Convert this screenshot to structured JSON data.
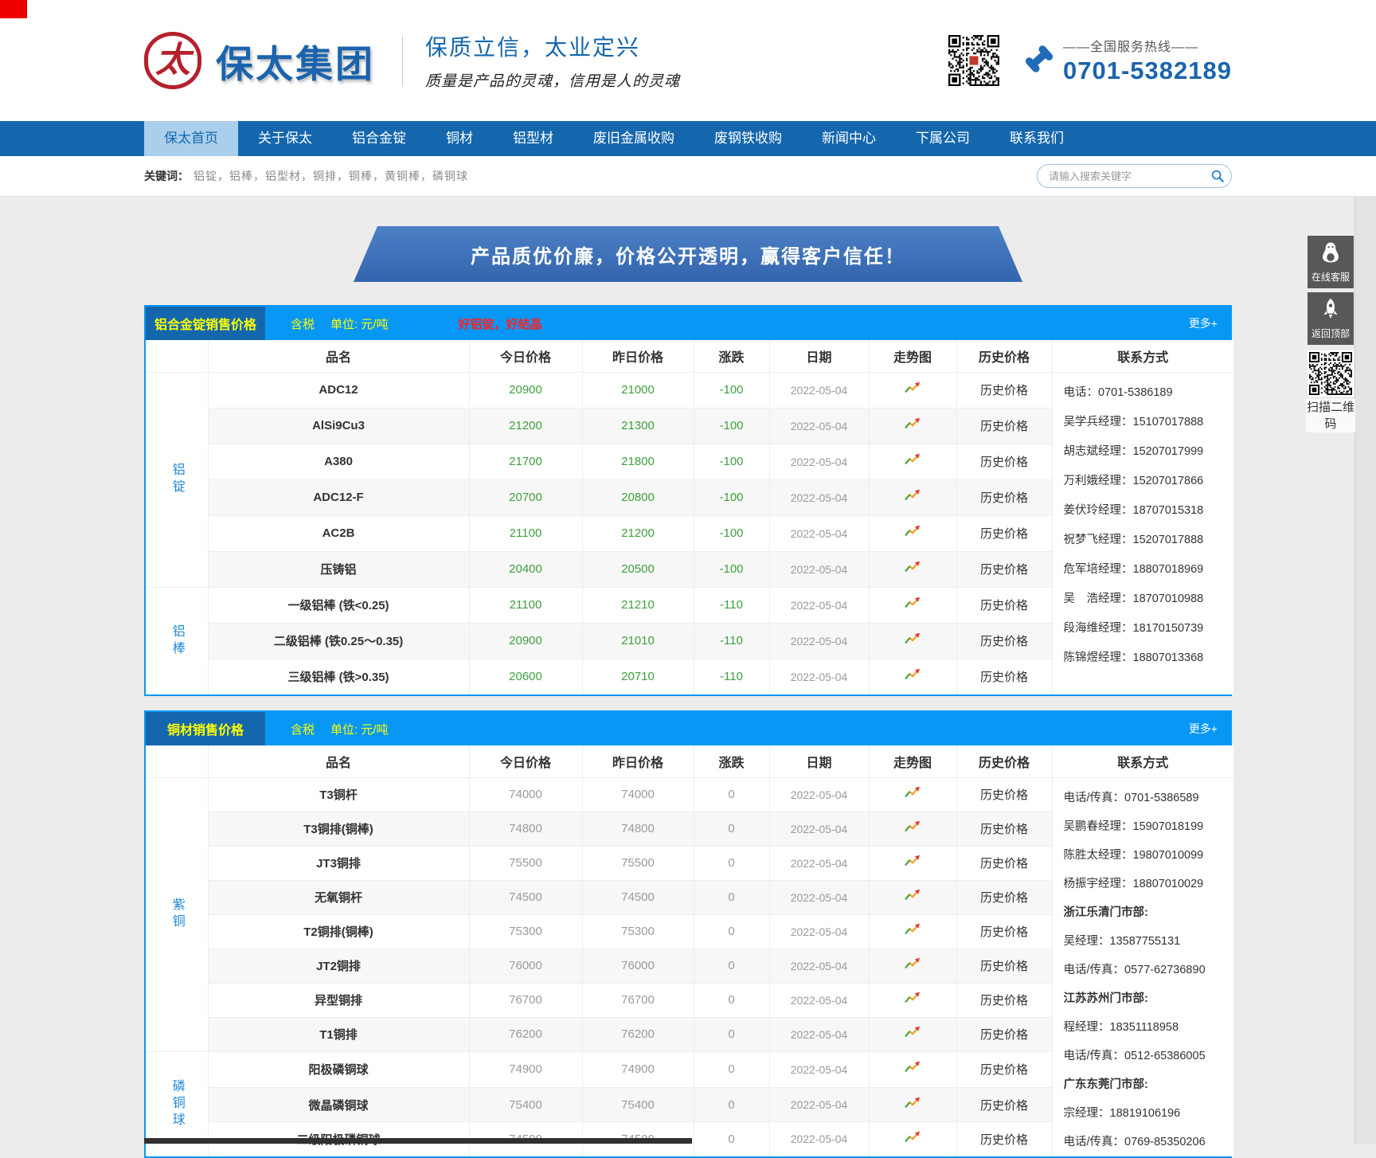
{
  "colors": {
    "accent_blue": "#0897f5",
    "nav_blue": "#1467ad",
    "highlight_yellow": "#ffff00",
    "down_green": "#3da03d",
    "neutral_gray": "#9a9a9a",
    "promo_red": "#ff2020",
    "logo_red": "#b5202a"
  },
  "header": {
    "logo_char": "太",
    "company_name": "保太集团",
    "slogan_main": "保质立信，太业定兴",
    "slogan_sub": "质量是产品的灵魂，信用是人的灵魂",
    "hotline_label": "——全国服务热线——",
    "hotline_number": "0701-5382189"
  },
  "nav": {
    "active_index": 0,
    "items": [
      "保太首页",
      "关于保太",
      "铝合金锭",
      "铜材",
      "铝型材",
      "废旧金属收购",
      "废钢铁收购",
      "新闻中心",
      "下属公司",
      "联系我们"
    ]
  },
  "search": {
    "keywords_label": "关键词：",
    "keywords_text": "铝锭，铝棒，铝型材，铜排，铜棒，黄铜棒，磷铜球",
    "placeholder": "请输入搜索关键字"
  },
  "banner": {
    "text": "产品质优价廉，价格公开透明，赢得客户信任！"
  },
  "table_columns": [
    "品名",
    "今日价格",
    "昨日价格",
    "涨跌",
    "日期",
    "走势图",
    "历史价格",
    "联系方式"
  ],
  "tables": [
    {
      "title": "铝合金锭销售价格",
      "tax_note": "含税",
      "unit_note": "单位: 元/吨",
      "promo_note": "好铝锭，好结晶",
      "more_label": "更多+",
      "history_label": "历史价格",
      "groups": [
        {
          "label": "铝锭",
          "rows": [
            {
              "name": "ADC12",
              "today": "20900",
              "yesterday": "21000",
              "change": "-100",
              "date": "2022-05-04"
            },
            {
              "name": "AlSi9Cu3",
              "today": "21200",
              "yesterday": "21300",
              "change": "-100",
              "date": "2022-05-04"
            },
            {
              "name": "A380",
              "today": "21700",
              "yesterday": "21800",
              "change": "-100",
              "date": "2022-05-04"
            },
            {
              "name": "ADC12-F",
              "today": "20700",
              "yesterday": "20800",
              "change": "-100",
              "date": "2022-05-04"
            },
            {
              "name": "AC2B",
              "today": "21100",
              "yesterday": "21200",
              "change": "-100",
              "date": "2022-05-04"
            },
            {
              "name": "压铸铝",
              "today": "20400",
              "yesterday": "20500",
              "change": "-100",
              "date": "2022-05-04"
            }
          ]
        },
        {
          "label": "铝棒",
          "rows": [
            {
              "name": "一级铝棒 (铁<0.25)",
              "today": "21100",
              "yesterday": "21210",
              "change": "-110",
              "date": "2022-05-04"
            },
            {
              "name": "二级铝棒 (铁0.25～0.35)",
              "today": "20900",
              "yesterday": "21010",
              "change": "-110",
              "date": "2022-05-04"
            },
            {
              "name": "三级铝棒 (铁>0.35)",
              "today": "20600",
              "yesterday": "20710",
              "change": "-110",
              "date": "2022-05-04"
            }
          ]
        }
      ],
      "contact_lines": [
        {
          "text": "电话：0701-5386189",
          "bold": false
        },
        {
          "text": "吴学兵经理：15107017888",
          "bold": false
        },
        {
          "text": "胡志斌经理：15207017999",
          "bold": false
        },
        {
          "text": "万利娥经理：15207017866",
          "bold": false
        },
        {
          "text": "姜伏玲经理：18707015318",
          "bold": false
        },
        {
          "text": "祝梦飞经理：15207017888",
          "bold": false
        },
        {
          "text": "危军培经理：18807018969",
          "bold": false
        },
        {
          "text": "吴　浩经理：18707010988",
          "bold": false
        },
        {
          "text": "段海维经理：18170150739",
          "bold": false
        },
        {
          "text": "陈锦煜经理：18807013368",
          "bold": false
        }
      ]
    },
    {
      "title": "铜材销售价格",
      "tax_note": "含税",
      "unit_note": "单位: 元/吨",
      "promo_note": "",
      "more_label": "更多+",
      "history_label": "历史价格",
      "groups": [
        {
          "label": "紫铜",
          "rows": [
            {
              "name": "T3铜杆",
              "today": "74000",
              "yesterday": "74000",
              "change": "0",
              "date": "2022-05-04"
            },
            {
              "name": "T3铜排(铜棒)",
              "today": "74800",
              "yesterday": "74800",
              "change": "0",
              "date": "2022-05-04"
            },
            {
              "name": "JT3铜排",
              "today": "75500",
              "yesterday": "75500",
              "change": "0",
              "date": "2022-05-04"
            },
            {
              "name": "无氧铜杆",
              "today": "74500",
              "yesterday": "74500",
              "change": "0",
              "date": "2022-05-04"
            },
            {
              "name": "T2铜排(铜棒)",
              "today": "75300",
              "yesterday": "75300",
              "change": "0",
              "date": "2022-05-04"
            },
            {
              "name": "JT2铜排",
              "today": "76000",
              "yesterday": "76000",
              "change": "0",
              "date": "2022-05-04"
            },
            {
              "name": "异型铜排",
              "today": "76700",
              "yesterday": "76700",
              "change": "0",
              "date": "2022-05-04"
            },
            {
              "name": "T1铜排",
              "today": "76200",
              "yesterday": "76200",
              "change": "0",
              "date": "2022-05-04"
            }
          ]
        },
        {
          "label": "磷铜球",
          "rows": [
            {
              "name": "阳极磷铜球",
              "today": "74900",
              "yesterday": "74900",
              "change": "0",
              "date": "2022-05-04"
            },
            {
              "name": "微晶磷铜球",
              "today": "75400",
              "yesterday": "75400",
              "change": "0",
              "date": "2022-05-04"
            },
            {
              "name": "二级阳极磷铜球",
              "today": "74500",
              "yesterday": "74500",
              "change": "0",
              "date": "2022-05-04"
            }
          ]
        }
      ],
      "contact_lines": [
        {
          "text": "电话/传真：0701-5386589",
          "bold": false
        },
        {
          "text": "吴鹏春经理：15907018199",
          "bold": false
        },
        {
          "text": "陈胜太经理：19807010099",
          "bold": false
        },
        {
          "text": "杨振宇经理：18807010029",
          "bold": false
        },
        {
          "text": "浙江乐清门市部:",
          "bold": true
        },
        {
          "text": "吴经理：13587755131",
          "bold": false
        },
        {
          "text": "电话/传真：0577-62736890",
          "bold": false
        },
        {
          "text": "江苏苏州门市部:",
          "bold": true
        },
        {
          "text": "程经理：18351118958",
          "bold": false
        },
        {
          "text": "电话/传真：0512-65386005",
          "bold": false
        },
        {
          "text": "广东东莞门市部:",
          "bold": true
        },
        {
          "text": "宗经理：18819106196",
          "bold": false
        },
        {
          "text": "电话/传真：0769-85350206",
          "bold": false
        }
      ]
    }
  ],
  "floating": {
    "online_service": "在线客服",
    "back_to_top": "返回顶部",
    "qr_caption": "扫描二维码"
  }
}
